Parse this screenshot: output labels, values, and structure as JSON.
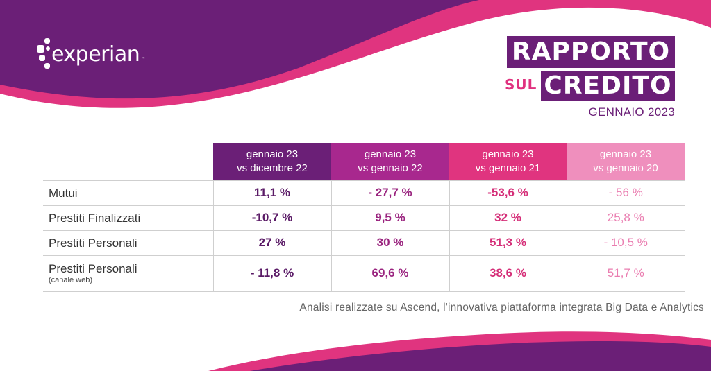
{
  "brand": {
    "logo_text": "experian",
    "trademark": "™"
  },
  "report_title": {
    "line1": "RAPPORTO",
    "sul": "SUL",
    "line2": "CREDITO",
    "date": "GENNAIO 2023"
  },
  "colors": {
    "purple": "#6b1f77",
    "magenta": "#a8288e",
    "pink": "#e0347f",
    "light_pink": "#ef8fbd"
  },
  "chart_data": {
    "type": "table",
    "columns": [
      {
        "line1": "gennaio 23",
        "line2": "vs dicembre 22"
      },
      {
        "line1": "gennaio 23",
        "line2": "vs gennaio 22"
      },
      {
        "line1": "gennaio 23",
        "line2": "vs gennaio 21"
      },
      {
        "line1": "gennaio 23",
        "line2": "vs gennaio 20"
      }
    ],
    "rows": [
      {
        "label": "Mutui",
        "sublabel": "",
        "values": [
          "11,1 %",
          "- 27,7 %",
          "-53,6 %",
          "- 56 %"
        ]
      },
      {
        "label": "Prestiti Finalizzati",
        "sublabel": "",
        "values": [
          "-10,7 %",
          "9,5 %",
          "32 %",
          "25,8 %"
        ]
      },
      {
        "label": "Prestiti Personali",
        "sublabel": "",
        "values": [
          "27 %",
          "30 %",
          "51,3 %",
          "- 10,5 %"
        ]
      },
      {
        "label": "Prestiti Personali",
        "sublabel": "(canale web)",
        "values": [
          "- 11,8 %",
          "69,6 %",
          "38,6 %",
          "51,7 %"
        ]
      }
    ]
  },
  "footnote": "Analisi realizzate su Ascend, l'innovativa piattaforma integrata Big Data e Analytics"
}
